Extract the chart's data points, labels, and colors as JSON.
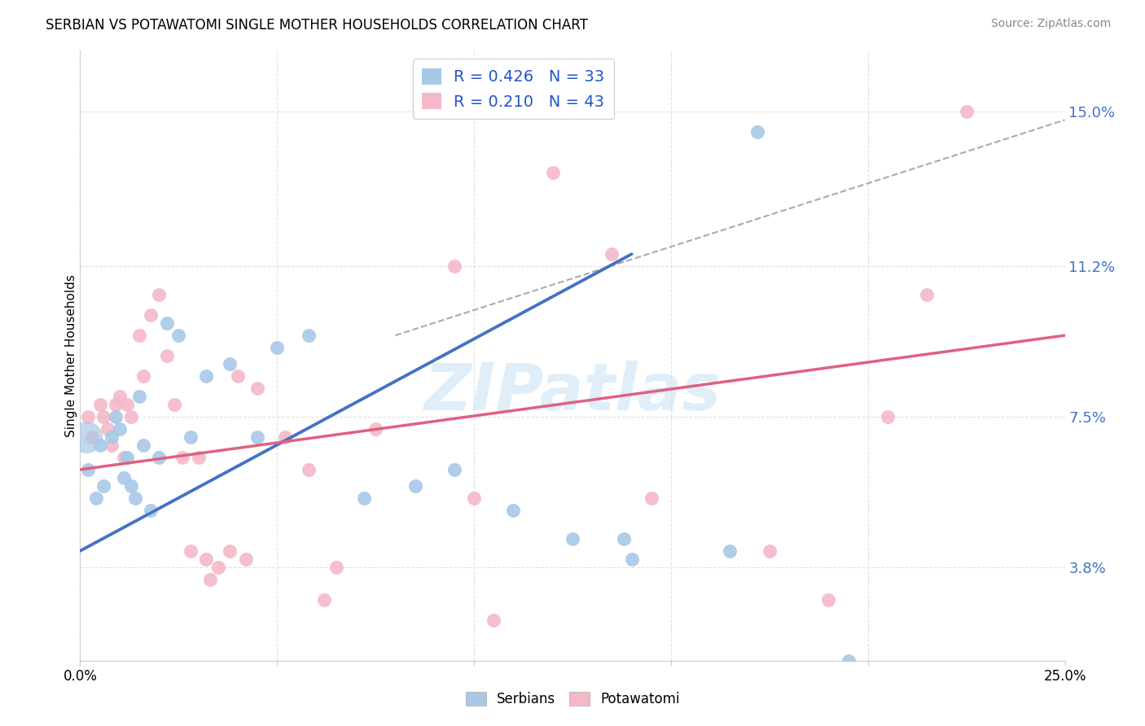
{
  "title": "SERBIAN VS POTAWATOMI SINGLE MOTHER HOUSEHOLDS CORRELATION CHART",
  "source": "Source: ZipAtlas.com",
  "ylabel": "Single Mother Households",
  "yticks": [
    3.8,
    7.5,
    11.2,
    15.0
  ],
  "ytick_labels": [
    "3.8%",
    "7.5%",
    "11.2%",
    "15.0%"
  ],
  "xlim": [
    0.0,
    25.0
  ],
  "ylim": [
    1.5,
    16.5
  ],
  "serbian_R": "0.426",
  "serbian_N": "33",
  "potawatomi_R": "0.210",
  "potawatomi_N": "43",
  "serbian_color": "#a8c8e8",
  "potawatomi_color": "#f5b8c8",
  "serbian_line_color": "#4472c4",
  "potawatomi_line_color": "#e06080",
  "dashed_line_color": "#aaaaaa",
  "serbians_x": [
    0.2,
    0.4,
    0.5,
    0.6,
    0.8,
    0.9,
    1.0,
    1.1,
    1.2,
    1.3,
    1.4,
    1.5,
    1.6,
    1.8,
    2.0,
    2.2,
    2.5,
    2.8,
    3.2,
    3.8,
    4.5,
    5.0,
    5.8,
    7.2,
    8.5,
    9.5,
    11.0,
    12.5,
    14.0,
    16.5,
    19.5,
    17.2,
    13.8
  ],
  "serbians_y": [
    6.2,
    5.5,
    6.8,
    5.8,
    7.0,
    7.5,
    7.2,
    6.0,
    6.5,
    5.8,
    5.5,
    8.0,
    6.8,
    5.2,
    6.5,
    9.8,
    9.5,
    7.0,
    8.5,
    8.8,
    7.0,
    9.2,
    9.5,
    5.5,
    5.8,
    6.2,
    5.2,
    4.5,
    4.0,
    4.2,
    1.5,
    14.5,
    4.5
  ],
  "potawatomi_x": [
    0.2,
    0.3,
    0.5,
    0.6,
    0.7,
    0.8,
    0.9,
    1.0,
    1.1,
    1.2,
    1.3,
    1.5,
    1.6,
    1.8,
    2.0,
    2.2,
    2.4,
    2.6,
    2.8,
    3.0,
    3.2,
    3.5,
    3.8,
    4.0,
    4.5,
    5.2,
    5.8,
    6.5,
    7.5,
    9.5,
    10.0,
    12.0,
    13.5,
    14.5,
    17.5,
    19.0,
    20.5,
    21.5,
    22.5,
    3.3,
    4.2,
    6.2,
    10.5
  ],
  "potawatomi_y": [
    7.5,
    7.0,
    7.8,
    7.5,
    7.2,
    6.8,
    7.8,
    8.0,
    6.5,
    7.8,
    7.5,
    9.5,
    8.5,
    10.0,
    10.5,
    9.0,
    7.8,
    6.5,
    4.2,
    6.5,
    4.0,
    3.8,
    4.2,
    8.5,
    8.2,
    7.0,
    6.2,
    3.8,
    7.2,
    11.2,
    5.5,
    13.5,
    11.5,
    5.5,
    4.2,
    3.0,
    7.5,
    10.5,
    15.0,
    3.5,
    4.0,
    3.0,
    2.5
  ],
  "serbian_line": [
    0.0,
    4.2,
    14.0,
    11.5
  ],
  "potawatomi_line": [
    0.0,
    6.2,
    25.0,
    9.5
  ],
  "dashed_line": [
    8.0,
    9.5,
    25.0,
    14.8
  ],
  "watermark": "ZIPatlas",
  "background_color": "#ffffff",
  "grid_color": "#e0e0e0"
}
